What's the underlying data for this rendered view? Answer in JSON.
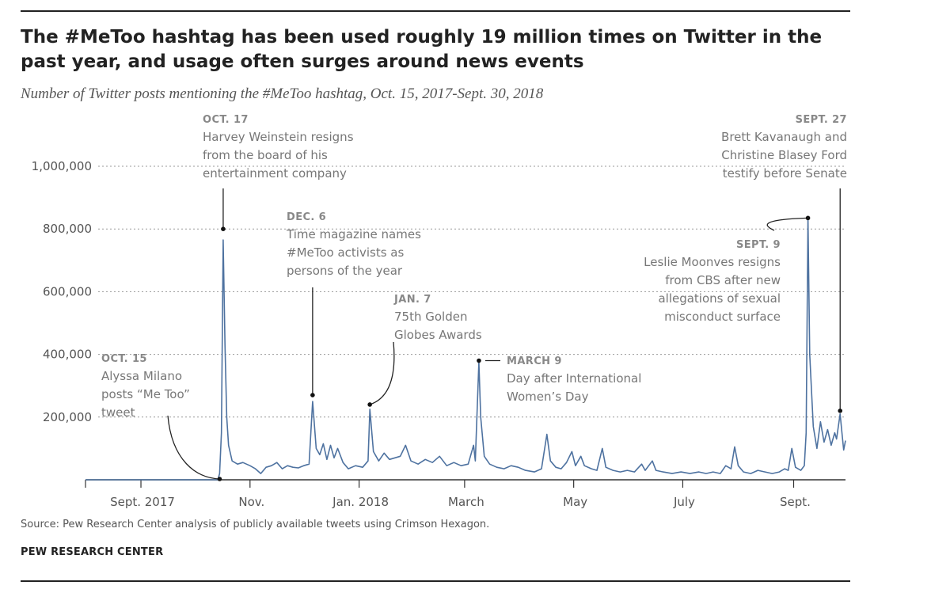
{
  "header": {
    "title": "The #MeToo hashtag has been used roughly 19 million times on Twitter in the past year, and usage often surges around news events",
    "subtitle": "Number of Twitter posts mentioning the #MeToo hashtag, Oct. 15, 2017-Sept. 30, 2018"
  },
  "footer": {
    "source": "Source: Pew Research Center analysis of publicly available tweets using Crimson Hexagon.",
    "brand": "PEW RESEARCH CENTER"
  },
  "colors": {
    "line": "#4e72a0",
    "text": "#222222",
    "annotation": "#777777",
    "annotation_heading": "#888888",
    "grid": "#999999"
  },
  "chart_data": {
    "type": "line",
    "title": "The #MeToo hashtag has been used roughly 19 million times on Twitter in the past year, and usage often surges around news events",
    "subtitle": "Number of Twitter posts mentioning the #MeToo hashtag, Oct. 15, 2017-Sept. 30, 2018",
    "xlabel": "",
    "ylabel": "",
    "xlim": [
      "2017-08-01",
      "2018-09-30"
    ],
    "ylim": [
      0,
      1000000
    ],
    "grid": true,
    "y_ticks": [
      {
        "value": 200000,
        "label": "200,000"
      },
      {
        "value": 400000,
        "label": "400,000"
      },
      {
        "value": 600000,
        "label": "600,000"
      },
      {
        "value": 800000,
        "label": "800,000"
      },
      {
        "value": 1000000,
        "label": "1,000,000"
      }
    ],
    "x_ticks": [
      {
        "date": "2017-09-01",
        "label": "Sept. 2017"
      },
      {
        "date": "2017-11-01",
        "label": "Nov."
      },
      {
        "date": "2018-01-01",
        "label": "Jan. 2018"
      },
      {
        "date": "2018-03-01",
        "label": "March"
      },
      {
        "date": "2018-05-01",
        "label": "May"
      },
      {
        "date": "2018-07-01",
        "label": "July"
      },
      {
        "date": "2018-09-01",
        "label": "Sept."
      }
    ],
    "series": [
      {
        "points": [
          [
            "2017-08-01",
            0
          ],
          [
            "2017-10-14",
            0
          ],
          [
            "2017-10-15",
            20000
          ],
          [
            "2017-10-16",
            150000
          ],
          [
            "2017-10-17",
            765000
          ],
          [
            "2017-10-18",
            430000
          ],
          [
            "2017-10-19",
            200000
          ],
          [
            "2017-10-20",
            110000
          ],
          [
            "2017-10-22",
            60000
          ],
          [
            "2017-10-25",
            50000
          ],
          [
            "2017-10-28",
            55000
          ],
          [
            "2017-11-01",
            45000
          ],
          [
            "2017-11-04",
            35000
          ],
          [
            "2017-11-07",
            20000
          ],
          [
            "2017-11-10",
            40000
          ],
          [
            "2017-11-13",
            45000
          ],
          [
            "2017-11-16",
            55000
          ],
          [
            "2017-11-19",
            35000
          ],
          [
            "2017-11-22",
            45000
          ],
          [
            "2017-11-25",
            40000
          ],
          [
            "2017-11-28",
            38000
          ],
          [
            "2017-12-01",
            45000
          ],
          [
            "2017-12-04",
            50000
          ],
          [
            "2017-12-06",
            250000
          ],
          [
            "2017-12-08",
            100000
          ],
          [
            "2017-12-10",
            80000
          ],
          [
            "2017-12-12",
            115000
          ],
          [
            "2017-12-14",
            65000
          ],
          [
            "2017-12-16",
            110000
          ],
          [
            "2017-12-18",
            70000
          ],
          [
            "2017-12-20",
            100000
          ],
          [
            "2017-12-23",
            55000
          ],
          [
            "2017-12-26",
            35000
          ],
          [
            "2017-12-30",
            45000
          ],
          [
            "2018-01-03",
            40000
          ],
          [
            "2018-01-06",
            60000
          ],
          [
            "2018-01-07",
            225000
          ],
          [
            "2018-01-09",
            90000
          ],
          [
            "2018-01-12",
            60000
          ],
          [
            "2018-01-15",
            85000
          ],
          [
            "2018-01-18",
            65000
          ],
          [
            "2018-01-21",
            70000
          ],
          [
            "2018-01-24",
            75000
          ],
          [
            "2018-01-27",
            110000
          ],
          [
            "2018-01-30",
            60000
          ],
          [
            "2018-02-03",
            50000
          ],
          [
            "2018-02-07",
            65000
          ],
          [
            "2018-02-11",
            55000
          ],
          [
            "2018-02-15",
            75000
          ],
          [
            "2018-02-19",
            45000
          ],
          [
            "2018-02-23",
            55000
          ],
          [
            "2018-02-27",
            45000
          ],
          [
            "2018-03-03",
            50000
          ],
          [
            "2018-03-06",
            110000
          ],
          [
            "2018-03-07",
            60000
          ],
          [
            "2018-03-09",
            375000
          ],
          [
            "2018-03-10",
            200000
          ],
          [
            "2018-03-12",
            75000
          ],
          [
            "2018-03-15",
            50000
          ],
          [
            "2018-03-19",
            40000
          ],
          [
            "2018-03-23",
            35000
          ],
          [
            "2018-03-27",
            45000
          ],
          [
            "2018-03-31",
            40000
          ],
          [
            "2018-04-04",
            30000
          ],
          [
            "2018-04-09",
            25000
          ],
          [
            "2018-04-13",
            35000
          ],
          [
            "2018-04-16",
            145000
          ],
          [
            "2018-04-18",
            60000
          ],
          [
            "2018-04-21",
            40000
          ],
          [
            "2018-04-24",
            35000
          ],
          [
            "2018-04-27",
            55000
          ],
          [
            "2018-04-30",
            90000
          ],
          [
            "2018-05-02",
            45000
          ],
          [
            "2018-05-05",
            75000
          ],
          [
            "2018-05-07",
            45000
          ],
          [
            "2018-05-11",
            35000
          ],
          [
            "2018-05-14",
            30000
          ],
          [
            "2018-05-17",
            100000
          ],
          [
            "2018-05-19",
            40000
          ],
          [
            "2018-05-23",
            30000
          ],
          [
            "2018-05-27",
            25000
          ],
          [
            "2018-05-31",
            30000
          ],
          [
            "2018-06-04",
            25000
          ],
          [
            "2018-06-08",
            50000
          ],
          [
            "2018-06-10",
            30000
          ],
          [
            "2018-06-14",
            60000
          ],
          [
            "2018-06-16",
            30000
          ],
          [
            "2018-06-20",
            25000
          ],
          [
            "2018-06-25",
            20000
          ],
          [
            "2018-06-30",
            25000
          ],
          [
            "2018-07-05",
            20000
          ],
          [
            "2018-07-10",
            25000
          ],
          [
            "2018-07-14",
            20000
          ],
          [
            "2018-07-18",
            25000
          ],
          [
            "2018-07-22",
            20000
          ],
          [
            "2018-07-25",
            45000
          ],
          [
            "2018-07-28",
            35000
          ],
          [
            "2018-07-30",
            105000
          ],
          [
            "2018-08-01",
            45000
          ],
          [
            "2018-08-04",
            25000
          ],
          [
            "2018-08-08",
            20000
          ],
          [
            "2018-08-12",
            30000
          ],
          [
            "2018-08-16",
            25000
          ],
          [
            "2018-08-20",
            20000
          ],
          [
            "2018-08-24",
            25000
          ],
          [
            "2018-08-27",
            35000
          ],
          [
            "2018-08-29",
            30000
          ],
          [
            "2018-08-31",
            100000
          ],
          [
            "2018-09-02",
            40000
          ],
          [
            "2018-09-05",
            30000
          ],
          [
            "2018-09-07",
            45000
          ],
          [
            "2018-09-08",
            150000
          ],
          [
            "2018-09-09",
            835000
          ],
          [
            "2018-09-10",
            400000
          ],
          [
            "2018-09-12",
            170000
          ],
          [
            "2018-09-14",
            100000
          ],
          [
            "2018-09-16",
            185000
          ],
          [
            "2018-09-18",
            120000
          ],
          [
            "2018-09-20",
            160000
          ],
          [
            "2018-09-22",
            110000
          ],
          [
            "2018-09-24",
            150000
          ],
          [
            "2018-09-25",
            130000
          ],
          [
            "2018-09-27",
            210000
          ],
          [
            "2018-09-28",
            150000
          ],
          [
            "2018-09-29",
            95000
          ],
          [
            "2018-09-30",
            125000
          ]
        ]
      }
    ],
    "annotations": [
      {
        "id": "oct15",
        "heading": "OCT. 15",
        "text": [
          "Alyssa Milano",
          "posts “Me Too”",
          "tweet"
        ],
        "date": "2017-10-15",
        "value": 0
      },
      {
        "id": "oct17",
        "heading": "OCT. 17",
        "text": [
          "Harvey Weinstein resigns",
          "from the board of his",
          "entertainment company"
        ],
        "date": "2017-10-17",
        "value": 800000
      },
      {
        "id": "dec6",
        "heading": "DEC. 6",
        "text": [
          "Time magazine names",
          "#MeToo activists as",
          "persons of the year"
        ],
        "date": "2017-12-06",
        "value": 270000
      },
      {
        "id": "jan7",
        "heading": "JAN. 7",
        "text": [
          "75th Golden",
          "Globes Awards"
        ],
        "date": "2018-01-07",
        "value": 240000
      },
      {
        "id": "mar9",
        "heading": "MARCH 9",
        "text": [
          "Day after International",
          "Women’s Day"
        ],
        "date": "2018-03-09",
        "value": 380000
      },
      {
        "id": "sep9",
        "heading": "SEPT. 9",
        "text": [
          "Leslie Moonves resigns",
          "from CBS after new",
          "allegations of sexual",
          "misconduct surface"
        ],
        "date": "2018-09-09",
        "value": 835000
      },
      {
        "id": "sep27",
        "heading": "SEPT. 27",
        "text": [
          "Brett Kavanaugh and",
          "Christine Blasey Ford",
          "testify before Senate"
        ],
        "date": "2018-09-27",
        "value": 220000
      }
    ]
  }
}
